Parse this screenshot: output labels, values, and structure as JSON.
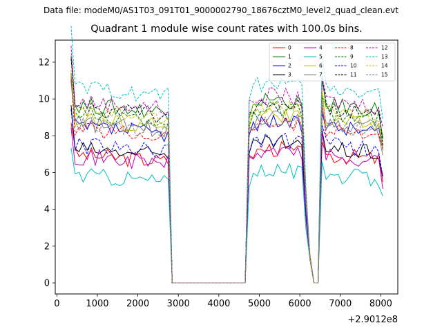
{
  "figure": {
    "suptitle": "Data file: modeM0/AS1T03_091T01_9000002790_18676cztM0_level2_quad_clean.evt",
    "title": "Quadrant 1 module wise count rates with 100.0s bins.",
    "offset_label": "+2.9012e8"
  },
  "chart_data": {
    "type": "line",
    "title": "Quadrant 1 module wise count rates with 100.0s bins.",
    "xlabel": "",
    "ylabel": "",
    "x_offset": 290120000,
    "xlim": [
      -40,
      8420
    ],
    "ylim": [
      -0.6,
      13.2
    ],
    "xticks": [
      0,
      1000,
      2000,
      3000,
      4000,
      5000,
      6000,
      7000,
      8000
    ],
    "yticks": [
      0,
      2,
      4,
      6,
      8,
      10,
      12
    ],
    "legend_position": "top-right",
    "series": [
      {
        "name": "0",
        "color": "#ff0000",
        "dash": "solid",
        "base": 7.0
      },
      {
        "name": "1",
        "color": "#008000",
        "dash": "solid",
        "base": 9.7
      },
      {
        "name": "2",
        "color": "#0000ff",
        "dash": "solid",
        "base": 8.5
      },
      {
        "name": "3",
        "color": "#000000",
        "dash": "solid",
        "base": 7.3
      },
      {
        "name": "4",
        "color": "#bf00bf",
        "dash": "solid",
        "base": 6.9
      },
      {
        "name": "5",
        "color": "#00bfbf",
        "dash": "solid",
        "base": 5.9
      },
      {
        "name": "6",
        "color": "#bfbf00",
        "dash": "solid",
        "base": 8.9
      },
      {
        "name": "7",
        "color": "#808080",
        "dash": "solid",
        "base": 8.7
      },
      {
        "name": "8",
        "color": "#ff0000",
        "dash": "dashed",
        "base": 8.4
      },
      {
        "name": "9",
        "color": "#008000",
        "dash": "dashed",
        "base": 9.2
      },
      {
        "name": "10",
        "color": "#0000ff",
        "dash": "dashed",
        "base": 7.5
      },
      {
        "name": "11",
        "color": "#000000",
        "dash": "dashed",
        "base": 9.5
      },
      {
        "name": "12",
        "color": "#bf00bf",
        "dash": "dashed",
        "base": 9.9
      },
      {
        "name": "13",
        "color": "#00bfbf",
        "dash": "dashed",
        "base": 10.6
      },
      {
        "name": "14",
        "color": "#bfbf00",
        "dash": "dashed",
        "base": 9.3
      },
      {
        "name": "15",
        "color": "#808080",
        "dash": "dashed",
        "base": 8.6
      }
    ],
    "time_profile": {
      "active_intervals": [
        [
          350,
          2750
        ],
        [
          4750,
          6050
        ],
        [
          6550,
          8050
        ]
      ],
      "zero_intervals": [
        [
          2850,
          4650
        ],
        [
          6350,
          6450
        ]
      ],
      "bin_seconds": 100
    }
  }
}
